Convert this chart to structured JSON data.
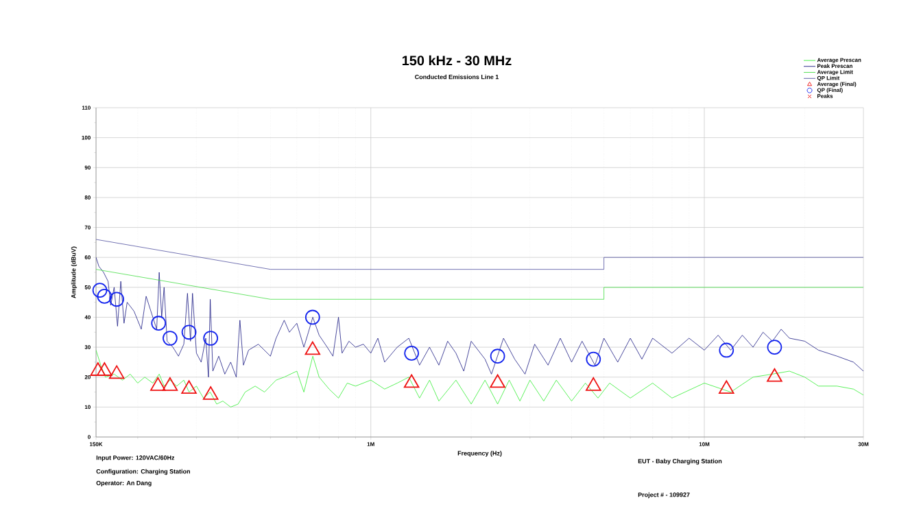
{
  "chart_data": {
    "type": "line",
    "title": "150 kHz - 30 MHz",
    "subtitle": "Conducted Emissions Line 1",
    "xlabel": "Frequency (Hz)",
    "ylabel": "Amplitude (dBuV)",
    "annotations": [
      "Input Power: 120VAC/60Hz",
      "Configuration: Charging Station",
      "Operator: An Dang",
      "EUT - Baby Charging Station",
      "Project # - 109927"
    ],
    "log": "x",
    "grid": true,
    "legend": "top right",
    "xlim": [
      150000,
      30000000
    ],
    "ylim": [
      0,
      110
    ],
    "xticks": [
      {
        "value": 150000,
        "label": "150K"
      },
      {
        "value": 1000000,
        "label": "1M"
      },
      {
        "value": 10000000,
        "label": "10M"
      },
      {
        "value": 30000000,
        "label": "30M"
      }
    ],
    "yticks": [
      0,
      10,
      20,
      30,
      40,
      50,
      60,
      70,
      80,
      90,
      100,
      110
    ],
    "series": [
      {
        "name": "Average Prescan",
        "marker": "none",
        "color": "#33ee33",
        "x": [
          150000.0,
          155000.0,
          160000.0,
          170000.0,
          180000.0,
          190000.0,
          200000.0,
          210000.0,
          222000.0,
          232000.0,
          240000.0,
          250000.0,
          262000.0,
          275000.0,
          285000.0,
          300000.0,
          315000.0,
          330000.0,
          345000.0,
          360000.0,
          380000.0,
          400000.0,
          420000.0,
          450000.0,
          480000.0,
          520000.0,
          550000.0,
          600000.0,
          630000.0,
          670000.0,
          700000.0,
          750000.0,
          800000.0,
          850000.0,
          900000.0,
          1000000.0,
          1100000.0,
          1200000.0,
          1300000.0,
          1400000.0,
          1500000.0,
          1600000.0,
          1800000.0,
          2000000.0,
          2200000.0,
          2400000.0,
          2600000.0,
          2800000.0,
          3000000.0,
          3300000.0,
          3600000.0,
          4000000.0,
          4400000.0,
          4800000.0,
          5200000.0,
          6000000.0,
          7000000.0,
          8000000.0,
          10000000.0,
          12000000.0,
          14000000.0,
          16000000.0,
          18000000.0,
          20000000.0,
          22000000.0,
          25000000.0,
          28000000.0,
          30000000.0
        ],
        "values": [
          29,
          24,
          20,
          21,
          19,
          21,
          18,
          20,
          18,
          21,
          17,
          19,
          17,
          19,
          15,
          17,
          13,
          15,
          11,
          12,
          10,
          11,
          15,
          17,
          15,
          19,
          20,
          22,
          15,
          27,
          20,
          16,
          13,
          18,
          17,
          19,
          16,
          18,
          20,
          13,
          19,
          12,
          19,
          11,
          19,
          11,
          19,
          12,
          19,
          12,
          19,
          12,
          18,
          13,
          18,
          13,
          18,
          13,
          18,
          15,
          20,
          21,
          22,
          20,
          17,
          17,
          16,
          14
        ]
      },
      {
        "name": "Peak Prescan",
        "marker": "none",
        "color": "#1c1c84",
        "x": [
          150000.0,
          153000.0,
          158000.0,
          163000.0,
          166000.0,
          170000.0,
          174000.0,
          178000.0,
          182000.0,
          186000.0,
          195000.0,
          205000.0,
          212000.0,
          222000.0,
          228000.0,
          232000.0,
          236000.0,
          240000.0,
          245000.0,
          255000.0,
          265000.0,
          275000.0,
          282000.0,
          288000.0,
          292000.0,
          300000.0,
          310000.0,
          320000.0,
          326000.0,
          330000.0,
          336000.0,
          350000.0,
          365000.0,
          380000.0,
          395000.0,
          405000.0,
          415000.0,
          430000.0,
          460000.0,
          500000.0,
          520000.0,
          550000.0,
          570000.0,
          600000.0,
          630000.0,
          650000.0,
          670000.0,
          700000.0,
          740000.0,
          770000.0,
          800000.0,
          820000.0,
          860000.0,
          900000.0,
          950000.0,
          1000000.0,
          1050000.0,
          1100000.0,
          1200000.0,
          1300000.0,
          1400000.0,
          1500000.0,
          1600000.0,
          1700000.0,
          1800000.0,
          1900000.0,
          2000000.0,
          2200000.0,
          2300000.0,
          2500000.0,
          2700000.0,
          2900000.0,
          3100000.0,
          3400000.0,
          3700000.0,
          4000000.0,
          4300000.0,
          4700000.0,
          5000000.0,
          5500000.0,
          6000000.0,
          6500000.0,
          7000000.0,
          8000000.0,
          9000000.0,
          10000000.0,
          11000000.0,
          12000000.0,
          13000000.0,
          14000000.0,
          15000000.0,
          16000000.0,
          17000000.0,
          18000000.0,
          20000000.0,
          22000000.0,
          25000000.0,
          28000000.0,
          30000000.0
        ],
        "values": [
          60,
          57,
          55,
          52,
          44,
          50,
          37,
          52,
          38,
          45,
          42,
          36,
          47,
          40,
          36,
          55,
          40,
          50,
          32,
          30,
          27,
          31,
          48,
          32,
          48,
          28,
          25,
          33,
          20,
          46,
          22,
          27,
          21,
          25,
          20,
          39,
          24,
          29,
          31,
          27,
          33,
          39,
          35,
          38,
          30,
          35,
          40,
          34,
          30,
          27,
          40,
          28,
          32,
          30,
          31,
          28,
          33,
          25,
          30,
          33,
          24,
          30,
          24,
          32,
          28,
          22,
          32,
          26,
          21,
          33,
          26,
          21,
          31,
          24,
          33,
          25,
          32,
          24,
          33,
          25,
          33,
          26,
          33,
          28,
          33,
          29,
          34,
          29,
          34,
          30,
          35,
          32,
          36,
          33,
          32,
          29,
          27,
          25,
          22
        ]
      },
      {
        "name": "Average Limit",
        "marker": "none",
        "color": "#44dd44",
        "x": [
          150000.0,
          500000.0,
          5000000.0,
          5000000.0,
          30000000.0
        ],
        "values": [
          56,
          46,
          46,
          50,
          50
        ]
      },
      {
        "name": "QP Limit",
        "marker": "none",
        "color": "#5050a0",
        "x": [
          150000.0,
          500000.0,
          5000000.0,
          5000000.0,
          30000000.0
        ],
        "values": [
          66,
          56,
          56,
          60,
          60
        ]
      },
      {
        "name": "Average (Final)",
        "type": "scatter",
        "marker": "triangle",
        "color": "#ee1111",
        "x": [
          152000.0,
          159000.0,
          173000.0,
          230000.0,
          250000.0,
          285000.0,
          331000.0,
          669000.0,
          1325000.0,
          2400000.0,
          4650000.0,
          11650000.0,
          16240000.0
        ],
        "values": [
          22,
          22,
          21,
          17,
          17,
          16,
          14,
          29,
          18,
          18,
          17,
          16,
          20
        ]
      },
      {
        "name": "QP (Final)",
        "type": "scatter",
        "marker": "circle",
        "color": "#1122ee",
        "x": [
          154000.0,
          159000.0,
          173000.0,
          231000.0,
          250000.0,
          285000.0,
          331000.0,
          669000.0,
          1325000.0,
          2400000.0,
          4650000.0,
          11650000.0,
          16240000.0
        ],
        "values": [
          49,
          47,
          46,
          38,
          33,
          35,
          33,
          40,
          28,
          27,
          26,
          29,
          30
        ]
      },
      {
        "name": "Peaks",
        "type": "scatter",
        "marker": "cross",
        "color": "#ee1111"
      }
    ]
  }
}
